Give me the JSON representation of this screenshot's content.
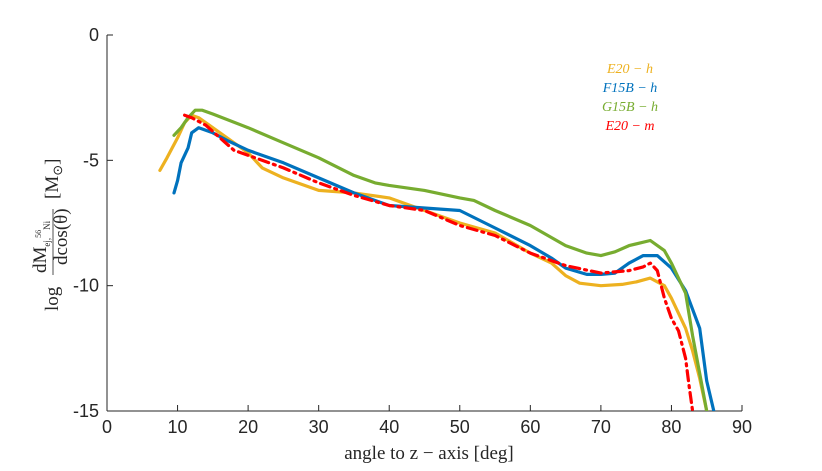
{
  "chart_data": {
    "type": "line",
    "xlabel": "angle to z − axis [deg]",
    "ylabel": {
      "prefix": "log",
      "frac_num": "dM",
      "frac_num_sub": "ej,",
      "frac_num_sup": "56",
      "frac_num_sub2": "Ni",
      "frac_den": "dcos(θ)",
      "unit": "[M",
      "unit_sub": "⊙",
      "unit_close": "]"
    },
    "xlim": [
      0,
      90
    ],
    "ylim": [
      -15,
      0
    ],
    "xticks": [
      0,
      10,
      20,
      30,
      40,
      50,
      60,
      70,
      80,
      90
    ],
    "xtick_labels": [
      "0",
      "10",
      "20",
      "30",
      "40",
      "50",
      "60",
      "70",
      "80",
      "90"
    ],
    "yticks": [
      0,
      -5,
      -10,
      -15
    ],
    "ytick_labels": [
      "0",
      "-5",
      "-10",
      "-15"
    ],
    "legend_position": "top-right",
    "series": [
      {
        "name": "E20 − h",
        "color": "#EDB120",
        "dash": "solid",
        "points": [
          [
            7.5,
            -5.4
          ],
          [
            8.5,
            -4.9
          ],
          [
            10,
            -4.1
          ],
          [
            11,
            -3.5
          ],
          [
            12,
            -3.2
          ],
          [
            13,
            -3.3
          ],
          [
            15,
            -3.7
          ],
          [
            18,
            -4.3
          ],
          [
            20,
            -4.7
          ],
          [
            22,
            -5.3
          ],
          [
            25,
            -5.7
          ],
          [
            30,
            -6.2
          ],
          [
            35,
            -6.3
          ],
          [
            40,
            -6.5
          ],
          [
            45,
            -7.0
          ],
          [
            50,
            -7.5
          ],
          [
            55,
            -7.9
          ],
          [
            60,
            -8.7
          ],
          [
            63,
            -9.1
          ],
          [
            65,
            -9.6
          ],
          [
            67,
            -9.9
          ],
          [
            70,
            -10.0
          ],
          [
            73,
            -9.95
          ],
          [
            75,
            -9.85
          ],
          [
            77,
            -9.7
          ],
          [
            79,
            -10.0
          ],
          [
            80,
            -10.5
          ],
          [
            82,
            -11.7
          ],
          [
            83,
            -12.6
          ],
          [
            84,
            -13.7
          ],
          [
            85,
            -15.0
          ]
        ]
      },
      {
        "name": "F15B − h",
        "color": "#0072BD",
        "dash": "solid",
        "points": [
          [
            9.5,
            -6.3
          ],
          [
            10,
            -5.8
          ],
          [
            10.5,
            -5.1
          ],
          [
            11.5,
            -4.5
          ],
          [
            12,
            -3.9
          ],
          [
            13,
            -3.7
          ],
          [
            15,
            -3.9
          ],
          [
            17,
            -4.2
          ],
          [
            20,
            -4.6
          ],
          [
            25,
            -5.1
          ],
          [
            30,
            -5.7
          ],
          [
            35,
            -6.3
          ],
          [
            40,
            -6.8
          ],
          [
            45,
            -6.9
          ],
          [
            50,
            -7.0
          ],
          [
            55,
            -7.7
          ],
          [
            60,
            -8.4
          ],
          [
            63,
            -8.9
          ],
          [
            65,
            -9.3
          ],
          [
            68,
            -9.55
          ],
          [
            70,
            -9.55
          ],
          [
            72,
            -9.5
          ],
          [
            74,
            -9.1
          ],
          [
            76,
            -8.8
          ],
          [
            78,
            -8.8
          ],
          [
            80,
            -9.3
          ],
          [
            82,
            -10.2
          ],
          [
            84,
            -11.7
          ],
          [
            85,
            -13.8
          ],
          [
            86,
            -15.0
          ]
        ]
      },
      {
        "name": "G15B − h",
        "color": "#77AC30",
        "dash": "solid",
        "points": [
          [
            9.5,
            -4.0
          ],
          [
            10.5,
            -3.7
          ],
          [
            11.5,
            -3.3
          ],
          [
            12.5,
            -3.0
          ],
          [
            13.5,
            -3.0
          ],
          [
            15,
            -3.15
          ],
          [
            20,
            -3.7
          ],
          [
            25,
            -4.3
          ],
          [
            30,
            -4.9
          ],
          [
            35,
            -5.6
          ],
          [
            38,
            -5.9
          ],
          [
            40,
            -6.0
          ],
          [
            45,
            -6.2
          ],
          [
            50,
            -6.5
          ],
          [
            52,
            -6.6
          ],
          [
            55,
            -7.0
          ],
          [
            60,
            -7.6
          ],
          [
            65,
            -8.4
          ],
          [
            68,
            -8.7
          ],
          [
            70,
            -8.8
          ],
          [
            72,
            -8.65
          ],
          [
            74,
            -8.4
          ],
          [
            77,
            -8.2
          ],
          [
            79,
            -8.6
          ],
          [
            80,
            -9.1
          ],
          [
            82,
            -10.3
          ],
          [
            83,
            -12.0
          ],
          [
            84,
            -13.5
          ],
          [
            85,
            -15.0
          ]
        ]
      },
      {
        "name": "E20 − m",
        "color": "#FF0000",
        "dash": "dashdot",
        "points": [
          [
            11,
            -3.2
          ],
          [
            12,
            -3.3
          ],
          [
            14,
            -3.6
          ],
          [
            16,
            -4.1
          ],
          [
            18,
            -4.6
          ],
          [
            20,
            -4.8
          ],
          [
            25,
            -5.3
          ],
          [
            30,
            -5.9
          ],
          [
            35,
            -6.4
          ],
          [
            40,
            -6.8
          ],
          [
            45,
            -7.0
          ],
          [
            50,
            -7.6
          ],
          [
            55,
            -8.0
          ],
          [
            60,
            -8.7
          ],
          [
            65,
            -9.2
          ],
          [
            70,
            -9.5
          ],
          [
            74,
            -9.4
          ],
          [
            76,
            -9.25
          ],
          [
            77,
            -9.1
          ],
          [
            78,
            -9.4
          ],
          [
            79,
            -10.5
          ],
          [
            80,
            -11.3
          ],
          [
            81,
            -11.8
          ],
          [
            82,
            -12.9
          ],
          [
            82.5,
            -14.0
          ],
          [
            83,
            -15.0
          ]
        ]
      }
    ]
  }
}
